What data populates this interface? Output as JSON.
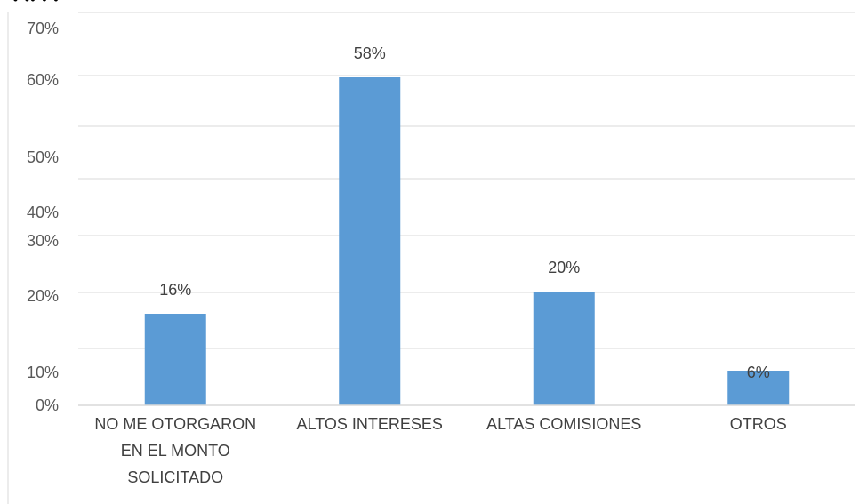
{
  "chart_data": {
    "type": "bar",
    "title": "",
    "categories": [
      [
        "NO ME OTORGARON",
        "EN EL MONTO",
        "SOLICITADO"
      ],
      [
        "ALTOS INTERESES"
      ],
      [
        "ALTAS COMISIONES"
      ],
      [
        "OTROS"
      ]
    ],
    "values": [
      16,
      58,
      20,
      6
    ],
    "data_labels": [
      "16%",
      "58%",
      "20%",
      "6%"
    ],
    "y_ticks": [
      "70%",
      "60%",
      "50%",
      "40%",
      "30%",
      "20%",
      "10%",
      "0%"
    ],
    "ylim": [
      0,
      70
    ],
    "xlabel": "",
    "ylabel": "",
    "grid": true,
    "bar_color": "#5b9bd5",
    "grid_color": "#d9d9d9"
  }
}
